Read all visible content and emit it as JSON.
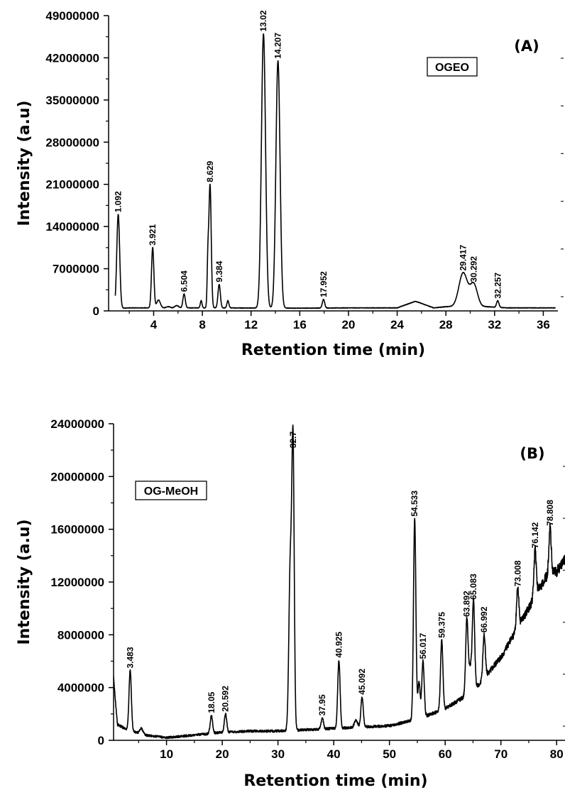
{
  "chart_data": [
    {
      "type": "line",
      "panel_label": "(A)",
      "annotation": "OGEO",
      "xlabel": "Retention time (min)",
      "ylabel": "Intensity (a.u)",
      "xlim": [
        0.3,
        37.2
      ],
      "ylim": [
        0,
        49000000
      ],
      "xticks": [
        4,
        8,
        12,
        16,
        20,
        24,
        28,
        32,
        36
      ],
      "yticks": [
        0,
        7000000,
        14000000,
        21000000,
        28000000,
        35000000,
        42000000,
        49000000
      ],
      "ytick_labels": [
        "0",
        "7000000",
        "14000000",
        "21000000",
        "28000000",
        "35000000",
        "42000000",
        "49000000"
      ],
      "peaks": [
        {
          "label": "1.092",
          "x": 1.09,
          "y": 16000000
        },
        {
          "label": "3.921",
          "x": 3.92,
          "y": 10500000
        },
        {
          "label": "6.504",
          "x": 6.5,
          "y": 2800000
        },
        {
          "label": "8.629",
          "x": 8.63,
          "y": 21000000
        },
        {
          "label": "9.384",
          "x": 9.38,
          "y": 4400000
        },
        {
          "label": "13.02",
          "x": 13.02,
          "y": 46000000
        },
        {
          "label": "14.207",
          "x": 14.21,
          "y": 41500000
        },
        {
          "label": "17.952",
          "x": 17.95,
          "y": 1900000
        },
        {
          "label": "29.417",
          "x": 29.42,
          "y": 6300000
        },
        {
          "label": "30.292",
          "x": 30.29,
          "y": 4400000
        },
        {
          "label": "32.257",
          "x": 32.26,
          "y": 1700000
        }
      ],
      "baseline": [
        [
          0.8,
          400000
        ],
        [
          2,
          500000
        ],
        [
          6,
          500000
        ],
        [
          10,
          500000
        ],
        [
          16,
          450000
        ],
        [
          20,
          500000
        ],
        [
          24,
          500000
        ],
        [
          25.5,
          1600000
        ],
        [
          27,
          500000
        ],
        [
          28,
          700000
        ],
        [
          31.3,
          700000
        ],
        [
          33,
          500000
        ],
        [
          37,
          500000
        ]
      ],
      "extra_peaks": [
        {
          "x": 4.4,
          "y": 1800000,
          "w": 0.15
        },
        {
          "x": 5.2,
          "y": 700000,
          "w": 0.15
        },
        {
          "x": 5.9,
          "y": 900000,
          "w": 0.15
        },
        {
          "x": 7.9,
          "y": 1700000,
          "w": 0.07
        },
        {
          "x": 8.45,
          "y": 7200000,
          "w": 0.06
        },
        {
          "x": 10.1,
          "y": 1700000,
          "w": 0.08
        }
      ]
    },
    {
      "type": "line",
      "panel_label": "(B)",
      "annotation": "OG-MeOH",
      "xlabel": "Retention time (min)",
      "ylabel": "Intensity (a.u)",
      "xlim": [
        0.5,
        81.5
      ],
      "ylim": [
        0,
        24000000
      ],
      "xticks": [
        10,
        20,
        30,
        40,
        50,
        60,
        70,
        80
      ],
      "yticks": [
        0,
        4000000,
        8000000,
        12000000,
        16000000,
        20000000,
        24000000
      ],
      "ytick_labels": [
        "0",
        "4000000",
        "8000000",
        "12000000",
        "16000000",
        "20000000",
        "24000000"
      ],
      "peaks": [
        {
          "label": "3.483",
          "x": 3.48,
          "y": 5300000
        },
        {
          "label": "18.05",
          "x": 18.05,
          "y": 1900000
        },
        {
          "label": "20.592",
          "x": 20.59,
          "y": 2000000
        },
        {
          "label": "32.7",
          "x": 32.7,
          "y": 22000000
        },
        {
          "label": "37.95",
          "x": 37.95,
          "y": 1700000
        },
        {
          "label": "40.925",
          "x": 40.93,
          "y": 6100000
        },
        {
          "label": "45.092",
          "x": 45.09,
          "y": 3300000
        },
        {
          "label": "54.533",
          "x": 54.53,
          "y": 16800000
        },
        {
          "label": "56.017",
          "x": 56.02,
          "y": 6000000
        },
        {
          "label": "59.375",
          "x": 59.38,
          "y": 7600000
        },
        {
          "label": "63.892",
          "x": 63.89,
          "y": 9200000
        },
        {
          "label": "65.083",
          "x": 65.08,
          "y": 10500000
        },
        {
          "label": "66.992",
          "x": 66.99,
          "y": 8000000
        },
        {
          "label": "73.008",
          "x": 73.01,
          "y": 11500000
        },
        {
          "label": "76.142",
          "x": 76.14,
          "y": 14400000
        },
        {
          "label": "78.808",
          "x": 78.81,
          "y": 16100000
        }
      ],
      "baseline": [
        [
          0.5,
          4700000
        ],
        [
          1.2,
          1200000
        ],
        [
          3,
          800000
        ],
        [
          6,
          400000
        ],
        [
          10,
          200000
        ],
        [
          15,
          400000
        ],
        [
          20,
          600000
        ],
        [
          25,
          700000
        ],
        [
          30,
          700000
        ],
        [
          35,
          800000
        ],
        [
          40,
          900000
        ],
        [
          45,
          1000000
        ],
        [
          50,
          1100000
        ],
        [
          55,
          1600000
        ],
        [
          60,
          2400000
        ],
        [
          65,
          3700000
        ],
        [
          70,
          6300000
        ],
        [
          73,
          8500000
        ],
        [
          76,
          10800000
        ],
        [
          78,
          12300000
        ],
        [
          80,
          12800000
        ],
        [
          81.5,
          13700000
        ]
      ],
      "extra_peaks": [
        {
          "x": 5.5,
          "y": 900000,
          "w": 0.3
        },
        {
          "x": 23.5,
          "y": 500000,
          "w": 0.3
        },
        {
          "x": 29.5,
          "y": 700000,
          "w": 0.3
        },
        {
          "x": 32.2,
          "y": 13000000,
          "w": 0.25
        },
        {
          "x": 39.5,
          "y": 900000,
          "w": 0.3
        },
        {
          "x": 44,
          "y": 1500000,
          "w": 0.3
        },
        {
          "x": 47.8,
          "y": 800000,
          "w": 0.3
        },
        {
          "x": 50.3,
          "y": 800000,
          "w": 0.3
        },
        {
          "x": 55.3,
          "y": 4400000,
          "w": 0.2
        },
        {
          "x": 57.5,
          "y": 1200000,
          "w": 0.3
        },
        {
          "x": 61.5,
          "y": 1400000,
          "w": 0.3
        },
        {
          "x": 64.5,
          "y": 5500000,
          "w": 0.25
        },
        {
          "x": 71.5,
          "y": 1500000,
          "w": 0.4
        },
        {
          "x": 74.5,
          "y": 1800000,
          "w": 0.4
        },
        {
          "x": 77.3,
          "y": 2500000,
          "w": 0.35
        },
        {
          "x": 79.8,
          "y": 2100000,
          "w": 0.35
        }
      ]
    }
  ]
}
